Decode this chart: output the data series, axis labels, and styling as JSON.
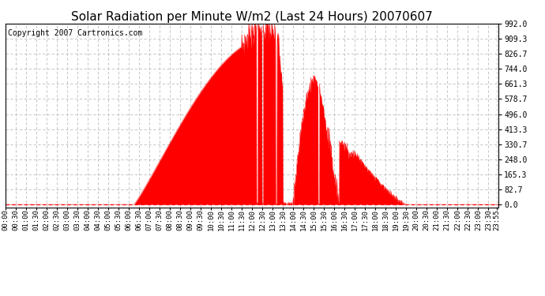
{
  "title": "Solar Radiation per Minute W/m2 (Last 24 Hours) 20070607",
  "copyright_text": "Copyright 2007 Cartronics.com",
  "y_max": 992.0,
  "y_ticks": [
    0.0,
    82.7,
    165.3,
    248.0,
    330.7,
    413.3,
    496.0,
    578.7,
    661.3,
    744.0,
    826.7,
    909.3,
    992.0
  ],
  "fill_color": "#FF0000",
  "line_color": "#FF0000",
  "dashed_line_color": "#FF0000",
  "bg_color": "#FFFFFF",
  "grid_color": "#BBBBBB",
  "title_fontsize": 11,
  "copyright_fontsize": 7,
  "tick_fontsize": 6.5,
  "ytick_fontsize": 7
}
